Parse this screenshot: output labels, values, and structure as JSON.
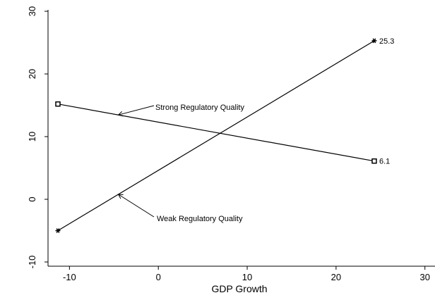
{
  "chart_data": {
    "type": "line",
    "title": "",
    "xlabel": "GDP Growth",
    "ylabel": "",
    "xlim": [
      -12,
      31
    ],
    "ylim": [
      -11,
      31
    ],
    "xticks": [
      -10,
      0,
      10,
      20,
      30
    ],
    "yticks": [
      -10,
      0,
      10,
      20,
      30
    ],
    "grid": false,
    "series": [
      {
        "name": "Strong Regulatory Quality",
        "marker": "square",
        "x": [
          -11.3,
          24.3
        ],
        "y": [
          15.2,
          6.1
        ],
        "end_label": "6.1",
        "annotation": {
          "text": "Strong Regulatory Quality",
          "x": -4.5
        }
      },
      {
        "name": "Weak Regulatory Quality",
        "marker": "star",
        "x": [
          -11.3,
          24.3
        ],
        "y": [
          -5.0,
          25.3
        ],
        "end_label": "25.3",
        "annotation": {
          "text": "Weak Regulatory Quality",
          "x": -4.5
        }
      }
    ]
  }
}
